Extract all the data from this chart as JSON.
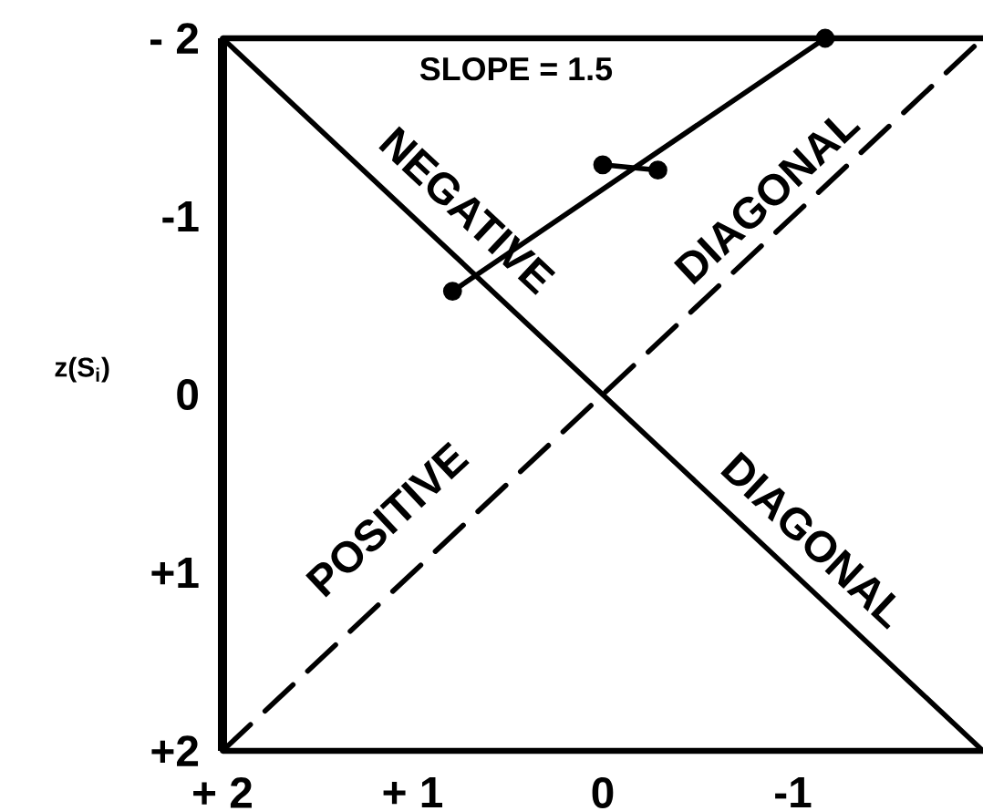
{
  "chart_data": {
    "type": "line",
    "ylabel": "z(S$_{i}$)",
    "xlim": [
      2,
      -2
    ],
    "ylim": [
      2,
      -2
    ],
    "xticks": [
      {
        "value": 2,
        "label": "+ 2"
      },
      {
        "value": 1,
        "label": "+ 1"
      },
      0,
      -1
    ],
    "yticks": [
      {
        "value": -2,
        "label": "- 2"
      },
      -1,
      0,
      {
        "value": 1,
        "label": "+1"
      },
      {
        "value": 2,
        "label": "+2"
      }
    ],
    "series": [
      {
        "color": "#000000",
        "x": [
          2,
          -2
        ],
        "values": [
          -2,
          2
        ],
        "line_style": "solid",
        "marker": "none"
      },
      {
        "color": "#000000",
        "x": [
          2,
          -2
        ],
        "values": [
          2,
          -2
        ],
        "line_style": "dashed",
        "marker": "none"
      },
      {
        "color": "#000000",
        "x": [
          0.79,
          -1.17
        ],
        "values": [
          -0.58,
          -2
        ],
        "line_style": "solid",
        "marker": "circle"
      },
      {
        "color": "#000000",
        "x": [
          0.0,
          -0.29
        ],
        "values": [
          -1.29,
          -1.26
        ],
        "line_style": "solid",
        "marker": "circle"
      }
    ],
    "annotations": [
      "SLOPE = 1.5",
      "NEGATIVE",
      "DIAGONAL",
      "POSITIVE",
      "DIAGONAL"
    ]
  }
}
